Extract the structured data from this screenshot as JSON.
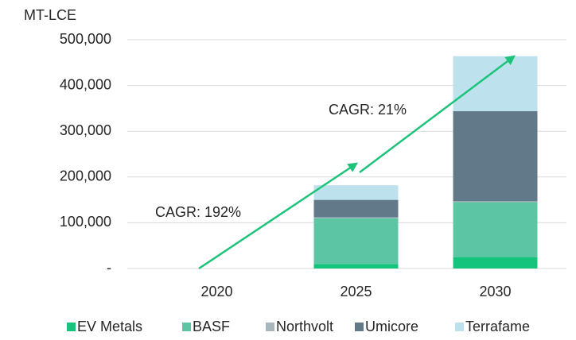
{
  "chart_data": {
    "type": "stacked_bar",
    "y_axis_label": "MT-LCE",
    "categories": [
      "2020",
      "2025",
      "2030"
    ],
    "series": [
      {
        "name": "EV Metals",
        "color": "#14c47c",
        "values": [
          0,
          10000,
          25000
        ]
      },
      {
        "name": "BASF",
        "color": "#5cc6a4",
        "values": [
          0,
          100000,
          120000
        ]
      },
      {
        "name": "Northvolt",
        "color": "#a8b6be",
        "values": [
          0,
          2000,
          2000
        ]
      },
      {
        "name": "Umicore",
        "color": "#62798a",
        "values": [
          0,
          38000,
          197000
        ]
      },
      {
        "name": "Terrafame",
        "color": "#bde2ee",
        "values": [
          0,
          32000,
          120000
        ]
      }
    ],
    "ylim": [
      0,
      500000
    ],
    "yticks": [
      {
        "value": 0,
        "label": "-"
      },
      {
        "value": 100000,
        "label": "100,000"
      },
      {
        "value": 200000,
        "label": "200,000"
      },
      {
        "value": 300000,
        "label": "300,000"
      },
      {
        "value": 400000,
        "label": "400,000"
      },
      {
        "value": 500000,
        "label": "500,000"
      }
    ],
    "grid": true,
    "legend": "bottom",
    "annotations": [
      "CAGR: 192%",
      "CAGR: 21%"
    ]
  }
}
